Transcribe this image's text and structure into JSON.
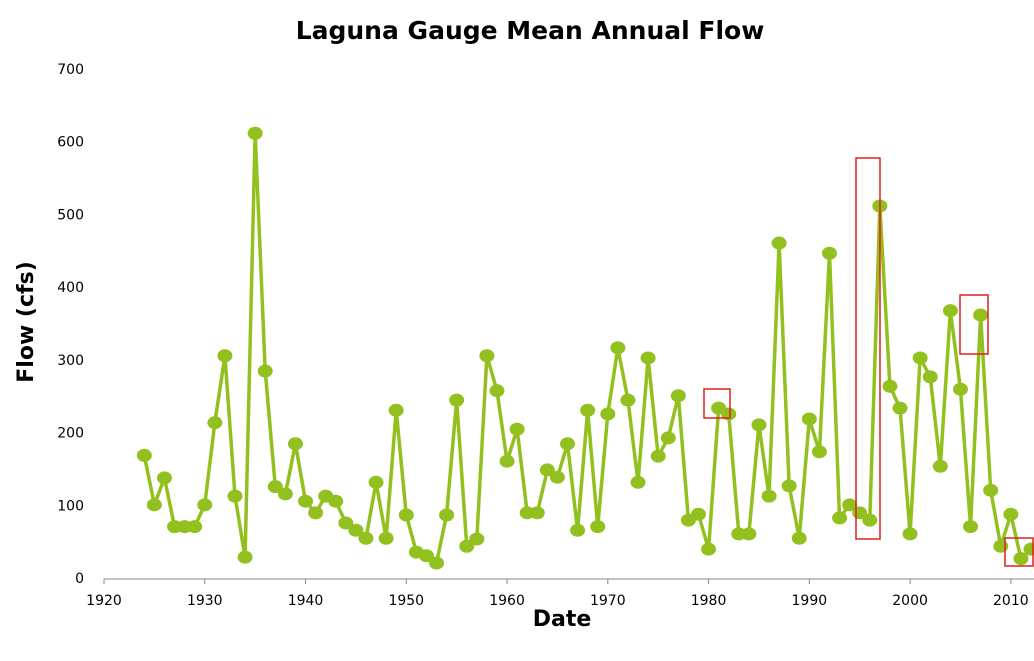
{
  "chart_data": {
    "type": "line",
    "title": "Laguna Gauge Mean Annual Flow",
    "x_label": "Date",
    "y_label": "Flow (cfs)",
    "x": [
      1924,
      1925,
      1926,
      1927,
      1928,
      1929,
      1930,
      1931,
      1932,
      1933,
      1934,
      1935,
      1936,
      1937,
      1938,
      1939,
      1940,
      1941,
      1942,
      1943,
      1944,
      1945,
      1946,
      1947,
      1948,
      1949,
      1950,
      1951,
      1952,
      1953,
      1954,
      1955,
      1956,
      1957,
      1958,
      1959,
      1960,
      1961,
      1962,
      1963,
      1964,
      1965,
      1966,
      1967,
      1968,
      1969,
      1970,
      1971,
      1972,
      1973,
      1974,
      1975,
      1976,
      1977,
      1978,
      1979,
      1980,
      1981,
      1982,
      1983,
      1984,
      1985,
      1986,
      1987,
      1988,
      1989,
      1990,
      1991,
      1992,
      1993,
      1994,
      1995,
      1996,
      1997,
      1998,
      1999,
      2000,
      2001,
      2002,
      2003,
      2004,
      2005,
      2006,
      2007,
      2008,
      2009,
      2010,
      2011,
      2012
    ],
    "series": [
      {
        "name": "Flow",
        "color": "#92c01f",
        "values": [
          170,
          102,
          139,
          72,
          72,
          72,
          102,
          215,
          307,
          114,
          30,
          613,
          286,
          127,
          117,
          186,
          107,
          91,
          114,
          107,
          77,
          67,
          56,
          133,
          56,
          232,
          88,
          37,
          32,
          22,
          88,
          246,
          45,
          55,
          307,
          259,
          162,
          206,
          91,
          91,
          150,
          140,
          186,
          67,
          232,
          72,
          227,
          318,
          246,
          133,
          304,
          169,
          194,
          252,
          81,
          89,
          41,
          235,
          227,
          62,
          62,
          212,
          114,
          462,
          128,
          56,
          220,
          175,
          448,
          84,
          102,
          91,
          81,
          513,
          265,
          235,
          62,
          304,
          278,
          155,
          369,
          261,
          72,
          363,
          122,
          45,
          89,
          28,
          41
        ]
      }
    ],
    "xlim": [
      1920,
      2012
    ],
    "xticks": [
      1920,
      1930,
      1940,
      1950,
      1960,
      1970,
      1980,
      1990,
      2000,
      2010
    ],
    "ylim": [
      0,
      700
    ],
    "yticks": [
      0,
      100,
      200,
      300,
      400,
      500,
      600,
      700
    ]
  }
}
